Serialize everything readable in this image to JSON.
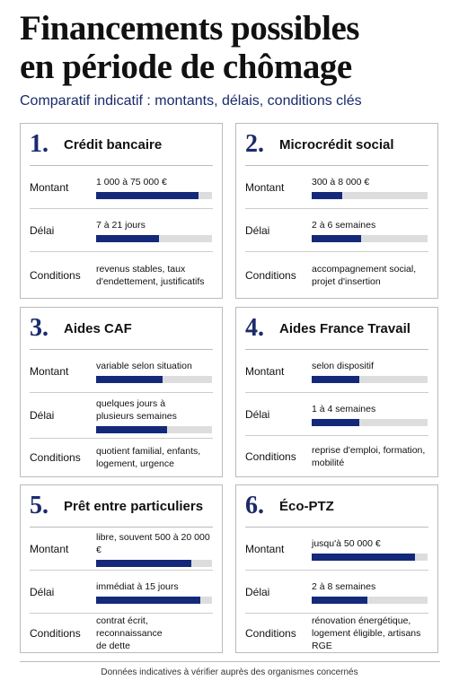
{
  "header": {
    "title_lines": [
      "Financements possibles",
      "en période de chômage"
    ],
    "subtitle": "Comparatif indicatif : montants, délais, conditions clés"
  },
  "cards": [
    {
      "number": "1.",
      "title": "Crédit bancaire",
      "rows": [
        {
          "label": "Montant",
          "text": [
            "1 000 à 75 000 €"
          ],
          "fill": 0.88
        },
        {
          "label": "Délai",
          "text": [
            "7 à 21 jours"
          ],
          "fill": 0.54
        },
        {
          "label": "Conditions",
          "text": [
            "revenus stables, taux",
            "d'endettement, justificatifs"
          ]
        }
      ]
    },
    {
      "number": "2.",
      "title": "Microcrédit social",
      "rows": [
        {
          "label": "Montant",
          "text": [
            "300 à 8 000 €"
          ],
          "fill": 0.26
        },
        {
          "label": "Délai",
          "text": [
            "2 à 6 semaines"
          ],
          "fill": 0.43
        },
        {
          "label": "Conditions",
          "text": [
            "accompagnement social,",
            "projet d'insertion"
          ]
        }
      ]
    },
    {
      "number": "3.",
      "title": "Aides CAF",
      "rows": [
        {
          "label": "Montant",
          "text": [
            "variable selon situation"
          ],
          "fill": 0.57
        },
        {
          "label": "Délai",
          "text": [
            "quelques jours à",
            "plusieurs semaines"
          ],
          "fill": 0.61
        },
        {
          "label": "Conditions",
          "text": [
            "quotient familial, enfants,",
            "logement, urgence"
          ]
        }
      ]
    },
    {
      "number": "4.",
      "title": "Aides France Travail",
      "rows": [
        {
          "label": "Montant",
          "text": [
            "selon dispositif"
          ],
          "fill": 0.41
        },
        {
          "label": "Délai",
          "text": [
            "1 à 4 semaines"
          ],
          "fill": 0.41
        },
        {
          "label": "Conditions",
          "text": [
            "reprise d'emploi, formation,",
            "mobilité"
          ]
        }
      ]
    },
    {
      "number": "5.",
      "title": "Prêt entre particuliers",
      "rows": [
        {
          "label": "Montant",
          "text": [
            "libre, souvent 500 à 20 000 €"
          ],
          "fill": 0.82
        },
        {
          "label": "Délai",
          "text": [
            "immédiat à 15 jours"
          ],
          "fill": 0.9
        },
        {
          "label": "Conditions",
          "text": [
            "contrat écrit, reconnaissance",
            "de dette"
          ]
        }
      ]
    },
    {
      "number": "6.",
      "title": "Éco-PTZ",
      "rows": [
        {
          "label": "Montant",
          "text": [
            "jusqu'à 50 000 €"
          ],
          "fill": 0.89
        },
        {
          "label": "Délai",
          "text": [
            "2 à 8 semaines"
          ],
          "fill": 0.48
        },
        {
          "label": "Conditions",
          "text": [
            "rénovation énergétique,",
            "logement éligible, artisans RGE"
          ]
        }
      ]
    }
  ],
  "footer": "Données indicatives à vérifier auprès des organismes concernés"
}
